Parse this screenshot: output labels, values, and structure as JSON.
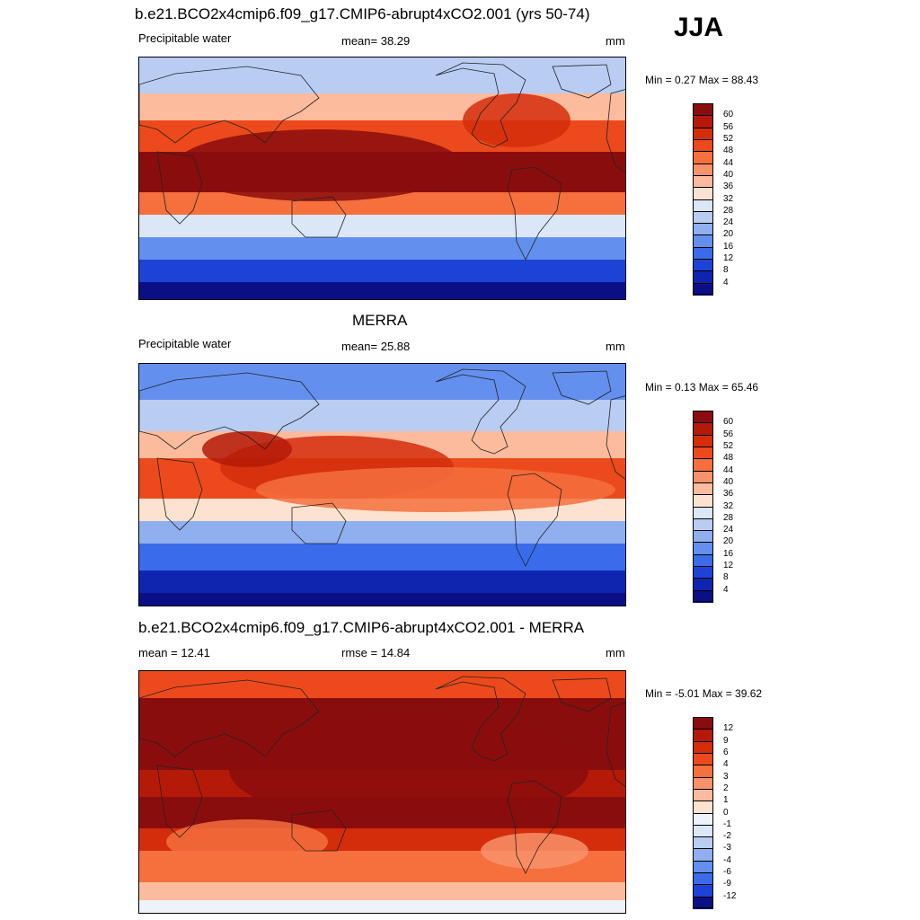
{
  "season": "JJA",
  "panels": [
    {
      "title": "b.e21.BCO2x4cmip6.f09_g17.CMIP6-abrupt4xCO2.001 (yrs 50-74)",
      "left_label": "Precipitable water",
      "center_label": "mean=  38.29",
      "right_label": "mm",
      "minmax": "Min =   0.27 Max =  88.43",
      "map_kind": "model"
    },
    {
      "title": "MERRA",
      "left_label": "Precipitable water",
      "center_label": "mean=  25.88",
      "right_label": "mm",
      "minmax": "Min =   0.13 Max =  65.46",
      "map_kind": "obs"
    },
    {
      "title": "b.e21.BCO2x4cmip6.f09_g17.CMIP6-abrupt4xCO2.001 - MERRA",
      "left_label": "mean =  12.41",
      "center_label": "rmse =  14.84",
      "right_label": "mm",
      "minmax": "Min =  -5.01 Max =  39.62",
      "map_kind": "diff"
    }
  ],
  "colorbar_abs": {
    "labels": [
      "60",
      "56",
      "52",
      "48",
      "44",
      "40",
      "36",
      "32",
      "28",
      "24",
      "20",
      "16",
      "12",
      "8",
      "4"
    ],
    "colors": [
      "#8a0d0d",
      "#b41a07",
      "#d42d0c",
      "#ec4a1c",
      "#f5703d",
      "#f8926a",
      "#fbbb9c",
      "#fde3cf",
      "#dbe6f7",
      "#b9cdf3",
      "#8fafef",
      "#6390ee",
      "#3a6bea",
      "#1d43d6",
      "#0f25b0",
      "#0a0f85"
    ]
  },
  "colorbar_diff": {
    "labels": [
      "12",
      "9",
      "6",
      "4",
      "3",
      "2",
      "1",
      "0",
      "-1",
      "-2",
      "-3",
      "-4",
      "-6",
      "-9",
      "-12"
    ],
    "colors": [
      "#8a0d0d",
      "#b41a07",
      "#d42d0c",
      "#ec4a1c",
      "#f5703d",
      "#f8926a",
      "#fbbb9c",
      "#fde3cf",
      "#eef3fb",
      "#dbe6f7",
      "#b9cdf3",
      "#8fafef",
      "#6390ee",
      "#3a6bea",
      "#1d43d6",
      "#0a0f85"
    ]
  }
}
